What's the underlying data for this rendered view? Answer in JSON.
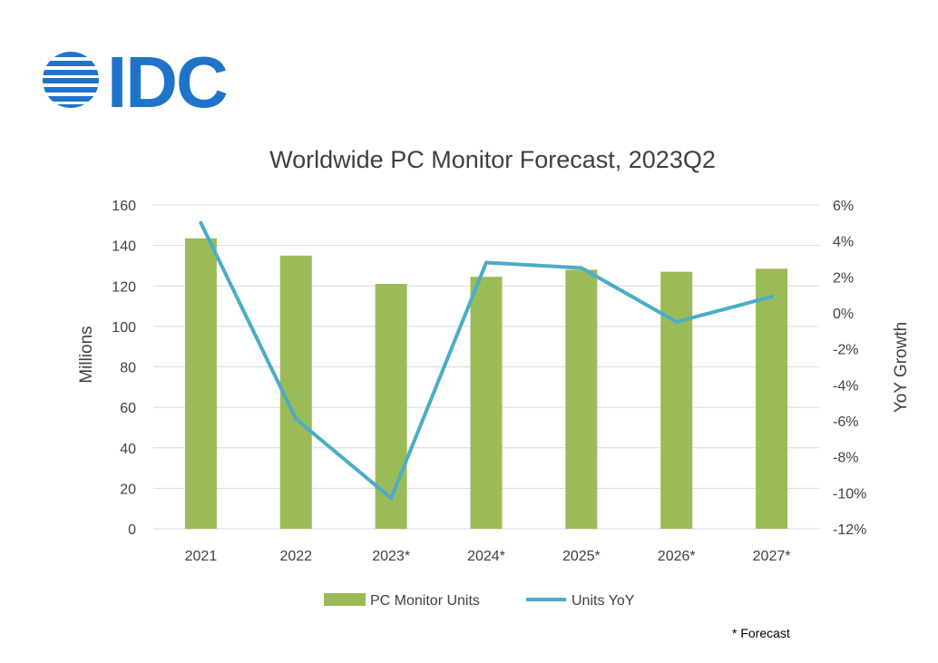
{
  "logo": {
    "text": "IDC",
    "color": "#1f74c9"
  },
  "chart_data": {
    "type": "bar",
    "title": "Worldwide PC Monitor Forecast, 2023Q2",
    "categories": [
      "2021",
      "2022",
      "2023*",
      "2024*",
      "2025*",
      "2026*",
      "2027*"
    ],
    "ylabel": "Millions",
    "y2label": "YoY Growth",
    "ylim": [
      0,
      160
    ],
    "y_ticks": [
      "0",
      "20",
      "40",
      "60",
      "80",
      "100",
      "120",
      "140",
      "160"
    ],
    "y2lim": [
      -12,
      6
    ],
    "y2_ticks": [
      "-12%",
      "-10%",
      "-8%",
      "-6%",
      "-4%",
      "-2%",
      "0%",
      "2%",
      "4%",
      "6%"
    ],
    "series": [
      {
        "name": "PC Monitor Units",
        "type": "bar",
        "axis": "left",
        "color": "#9bbb59",
        "values": [
          143.5,
          135,
          121,
          124.5,
          128,
          127,
          128.5
        ]
      },
      {
        "name": "Units YoY",
        "type": "line",
        "axis": "right",
        "color": "#4bacc6",
        "values": [
          5.0,
          -5.9,
          -10.3,
          2.8,
          2.5,
          -0.5,
          0.9
        ]
      }
    ],
    "gridlines": true,
    "legend_position": "bottom",
    "footnote": "* Forecast"
  }
}
